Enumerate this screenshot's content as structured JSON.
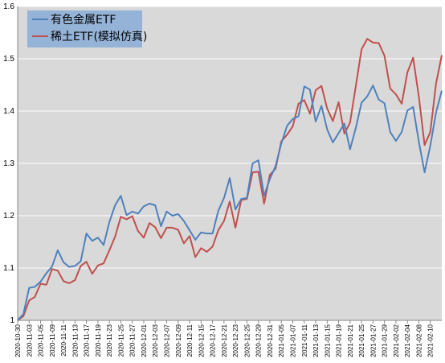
{
  "chart_data": {
    "type": "line",
    "title": "",
    "xlabel": "",
    "ylabel": "",
    "ylim": [
      1.0,
      1.6
    ],
    "yticks": [
      "1",
      "1.1",
      "1.2",
      "1.3",
      "1.4",
      "1.5",
      "1.6"
    ],
    "grid": true,
    "legend_position": "top-left",
    "plot_background": "#d9d9d9",
    "grid_color": "#ffffff",
    "x_tick_labels": [
      "2020-10-30",
      "2020-11-03",
      "2020-11-05",
      "2020-11-09",
      "2020-11-11",
      "2020-11-13",
      "2020-11-17",
      "2020-11-19",
      "2020-11-23",
      "2020-11-25",
      "2020-11-27",
      "2020-12-01",
      "2020-12-03",
      "2020-12-07",
      "2020-12-09",
      "2020-12-11",
      "2020-12-15",
      "2020-12-17",
      "2020-12-21",
      "2020-12-23",
      "2020-12-25",
      "2020-12-29",
      "2020-12-31",
      "2021-01-05",
      "2021-01-07",
      "2021-01-11",
      "2021-01-13",
      "2021-01-15",
      "2021-01-19",
      "2021-01-21",
      "2021-01-25",
      "2021-01-27",
      "2021-01-29",
      "2021-02-02",
      "2021-02-04",
      "2021-02-08",
      "2021-02-10"
    ],
    "series": [
      {
        "name": "有色金属ETF",
        "color": "#4f81bd",
        "values": [
          1.0,
          1.012,
          1.062,
          1.064,
          1.074,
          1.09,
          1.103,
          1.134,
          1.111,
          1.102,
          1.104,
          1.113,
          1.166,
          1.152,
          1.158,
          1.144,
          1.188,
          1.22,
          1.238,
          1.201,
          1.208,
          1.204,
          1.218,
          1.223,
          1.22,
          1.18,
          1.208,
          1.2,
          1.203,
          1.19,
          1.172,
          1.154,
          1.168,
          1.166,
          1.166,
          1.209,
          1.234,
          1.272,
          1.212,
          1.232,
          1.234,
          1.3,
          1.306,
          1.238,
          1.27,
          1.295,
          1.338,
          1.372,
          1.385,
          1.39,
          1.447,
          1.441,
          1.38,
          1.41,
          1.365,
          1.34,
          1.358,
          1.376,
          1.327,
          1.368,
          1.416,
          1.428,
          1.449,
          1.422,
          1.415,
          1.36,
          1.343,
          1.36,
          1.401,
          1.408,
          1.341,
          1.283,
          1.334,
          1.398,
          1.439
        ]
      },
      {
        "name": "稀土ETF(模拟仿真)",
        "color": "#c0504d",
        "values": [
          1.0,
          1.008,
          1.038,
          1.045,
          1.07,
          1.068,
          1.098,
          1.095,
          1.075,
          1.071,
          1.077,
          1.104,
          1.112,
          1.089,
          1.105,
          1.109,
          1.134,
          1.16,
          1.198,
          1.193,
          1.199,
          1.171,
          1.158,
          1.186,
          1.178,
          1.157,
          1.177,
          1.177,
          1.173,
          1.147,
          1.161,
          1.121,
          1.138,
          1.131,
          1.141,
          1.172,
          1.19,
          1.227,
          1.177,
          1.23,
          1.232,
          1.283,
          1.284,
          1.223,
          1.278,
          1.29,
          1.342,
          1.355,
          1.371,
          1.414,
          1.421,
          1.395,
          1.44,
          1.448,
          1.405,
          1.381,
          1.417,
          1.357,
          1.378,
          1.448,
          1.518,
          1.538,
          1.531,
          1.53,
          1.506,
          1.443,
          1.432,
          1.414,
          1.474,
          1.502,
          1.427,
          1.335,
          1.36,
          1.453,
          1.507
        ]
      }
    ]
  }
}
